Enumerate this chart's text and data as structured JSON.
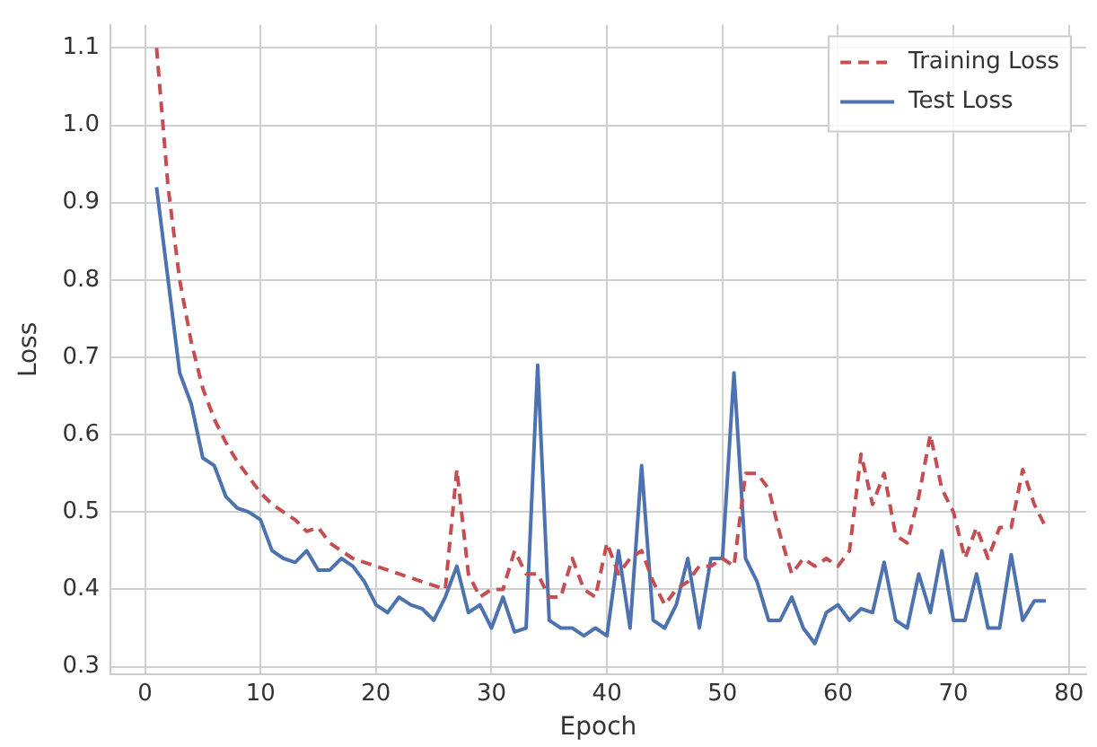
{
  "chart_data": {
    "type": "line",
    "xlabel": "Epoch",
    "ylabel": "Loss",
    "x": [
      1,
      2,
      3,
      4,
      5,
      6,
      7,
      8,
      9,
      10,
      11,
      12,
      13,
      14,
      15,
      16,
      17,
      18,
      19,
      20,
      21,
      22,
      23,
      24,
      25,
      26,
      27,
      28,
      29,
      30,
      31,
      32,
      33,
      34,
      35,
      36,
      37,
      38,
      39,
      40,
      41,
      42,
      43,
      44,
      45,
      46,
      47,
      48,
      49,
      50,
      51,
      52,
      53,
      54,
      55,
      56,
      57,
      58,
      59,
      60,
      61,
      62,
      63,
      64,
      65,
      66,
      67,
      68,
      69,
      70,
      71,
      72,
      73,
      74,
      75,
      76,
      77,
      78
    ],
    "series": [
      {
        "name": "Training Loss",
        "color": "#c44e52",
        "line_style": "dashed",
        "values": [
          1.1,
          0.92,
          0.8,
          0.72,
          0.66,
          0.62,
          0.59,
          0.565,
          0.545,
          0.525,
          0.51,
          0.5,
          0.49,
          0.475,
          0.48,
          0.46,
          0.45,
          0.44,
          0.435,
          0.43,
          0.425,
          0.42,
          0.415,
          0.41,
          0.405,
          0.4,
          0.555,
          0.42,
          0.39,
          0.4,
          0.4,
          0.45,
          0.42,
          0.42,
          0.39,
          0.39,
          0.44,
          0.4,
          0.39,
          0.46,
          0.42,
          0.44,
          0.45,
          0.41,
          0.38,
          0.4,
          0.41,
          0.43,
          0.43,
          0.44,
          0.43,
          0.55,
          0.55,
          0.53,
          0.47,
          0.42,
          0.44,
          0.43,
          0.44,
          0.43,
          0.45,
          0.575,
          0.51,
          0.55,
          0.47,
          0.46,
          0.52,
          0.6,
          0.53,
          0.5,
          0.44,
          0.48,
          0.44,
          0.48,
          0.48,
          0.555,
          0.51,
          0.48
        ]
      },
      {
        "name": "Test Loss",
        "color": "#4c72b0",
        "line_style": "solid",
        "values": [
          0.92,
          0.8,
          0.68,
          0.64,
          0.57,
          0.56,
          0.52,
          0.505,
          0.5,
          0.49,
          0.45,
          0.44,
          0.435,
          0.45,
          0.425,
          0.425,
          0.44,
          0.43,
          0.41,
          0.38,
          0.37,
          0.39,
          0.38,
          0.375,
          0.36,
          0.39,
          0.43,
          0.37,
          0.38,
          0.35,
          0.39,
          0.345,
          0.35,
          0.69,
          0.36,
          0.35,
          0.35,
          0.34,
          0.35,
          0.34,
          0.45,
          0.35,
          0.56,
          0.36,
          0.35,
          0.38,
          0.44,
          0.35,
          0.44,
          0.44,
          0.68,
          0.44,
          0.41,
          0.36,
          0.36,
          0.39,
          0.35,
          0.33,
          0.37,
          0.38,
          0.36,
          0.375,
          0.37,
          0.435,
          0.36,
          0.35,
          0.42,
          0.37,
          0.45,
          0.36,
          0.36,
          0.42,
          0.35,
          0.35,
          0.445,
          0.36,
          0.385,
          0.385
        ]
      }
    ],
    "xlim": [
      -3,
      81.5
    ],
    "xticks": [
      0,
      10,
      20,
      30,
      40,
      50,
      60,
      70,
      80
    ],
    "ylim": [
      0.29,
      1.13
    ],
    "yticks": [
      0.3,
      0.4,
      0.5,
      0.6,
      0.7,
      0.8,
      0.9,
      {
        "value": 1,
        "label": "1.0"
      },
      1.1
    ],
    "grid": true,
    "legend": "top right",
    "marker": "none"
  }
}
